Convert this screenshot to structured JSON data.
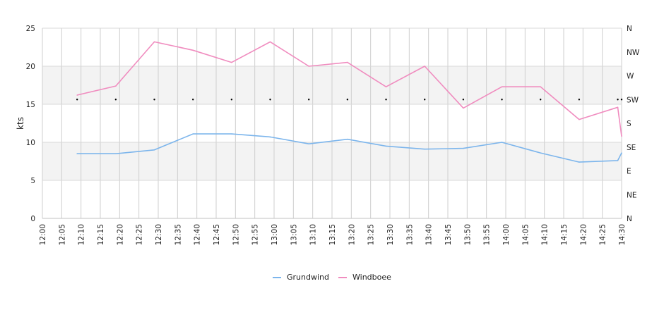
{
  "chart_data": {
    "type": "line",
    "title": "",
    "xlabel": "",
    "ylabel": "kts",
    "ylim": [
      0,
      25
    ],
    "y_ticks": [
      0,
      5,
      10,
      15,
      20,
      25
    ],
    "x_range": [
      "12:00",
      "14:30"
    ],
    "x_tick_labels": [
      "12:00",
      "12:05",
      "12:10",
      "12:15",
      "12:20",
      "12:25",
      "12:30",
      "12:35",
      "12:40",
      "12:45",
      "12:50",
      "12:55",
      "13:00",
      "13:05",
      "13:10",
      "13:15",
      "13:20",
      "13:25",
      "13:30",
      "13:35",
      "13:40",
      "13:45",
      "13:50",
      "13:55",
      "14:00",
      "14:05",
      "14:10",
      "14:15",
      "14:20",
      "14:25",
      "14:30"
    ],
    "y2_ticks": [
      "N",
      "NW",
      "W",
      "SW",
      "S",
      "SE",
      "E",
      "NE",
      "N"
    ],
    "grid": true,
    "legend_position": "bottom",
    "series": [
      {
        "name": "Grundwind",
        "color": "#7cb5ec",
        "points": [
          [
            "12:09",
            8.5
          ],
          [
            "12:19",
            8.5
          ],
          [
            "12:29",
            9.0
          ],
          [
            "12:39",
            11.1
          ],
          [
            "12:49",
            11.1
          ],
          [
            "12:59",
            10.7
          ],
          [
            "13:09",
            9.8
          ],
          [
            "13:19",
            10.4
          ],
          [
            "13:29",
            9.5
          ],
          [
            "13:39",
            9.1
          ],
          [
            "13:49",
            9.2
          ],
          [
            "13:59",
            10.0
          ],
          [
            "14:09",
            8.6
          ],
          [
            "14:19",
            7.4
          ],
          [
            "14:29",
            7.6
          ],
          [
            "14:30",
            8.6
          ]
        ]
      },
      {
        "name": "Windboee",
        "color": "#f08cbf",
        "points": [
          [
            "12:09",
            16.2
          ],
          [
            "12:19",
            17.4
          ],
          [
            "12:29",
            23.2
          ],
          [
            "12:39",
            22.1
          ],
          [
            "12:49",
            20.5
          ],
          [
            "12:59",
            23.2
          ],
          [
            "13:09",
            20.0
          ],
          [
            "13:19",
            20.5
          ],
          [
            "13:29",
            17.3
          ],
          [
            "13:39",
            20.0
          ],
          [
            "13:49",
            14.5
          ],
          [
            "13:59",
            17.3
          ],
          [
            "14:09",
            17.3
          ],
          [
            "14:19",
            13.0
          ],
          [
            "14:29",
            14.6
          ],
          [
            "14:30",
            10.8
          ]
        ]
      },
      {
        "name": "",
        "type": "scatter",
        "axis": "right",
        "color": "#000000",
        "points": [
          [
            "12:09",
            "SW"
          ],
          [
            "12:19",
            "SW"
          ],
          [
            "12:29",
            "SW"
          ],
          [
            "12:39",
            "SW"
          ],
          [
            "12:49",
            "SW"
          ],
          [
            "12:59",
            "SW"
          ],
          [
            "13:09",
            "SW"
          ],
          [
            "13:19",
            "SW"
          ],
          [
            "13:29",
            "SW"
          ],
          [
            "13:39",
            "SW"
          ],
          [
            "13:49",
            "SW"
          ],
          [
            "13:59",
            "SW"
          ],
          [
            "14:09",
            "SW"
          ],
          [
            "14:19",
            "SW"
          ],
          [
            "14:29",
            "SW"
          ],
          [
            "14:30",
            "SW"
          ]
        ]
      }
    ]
  }
}
